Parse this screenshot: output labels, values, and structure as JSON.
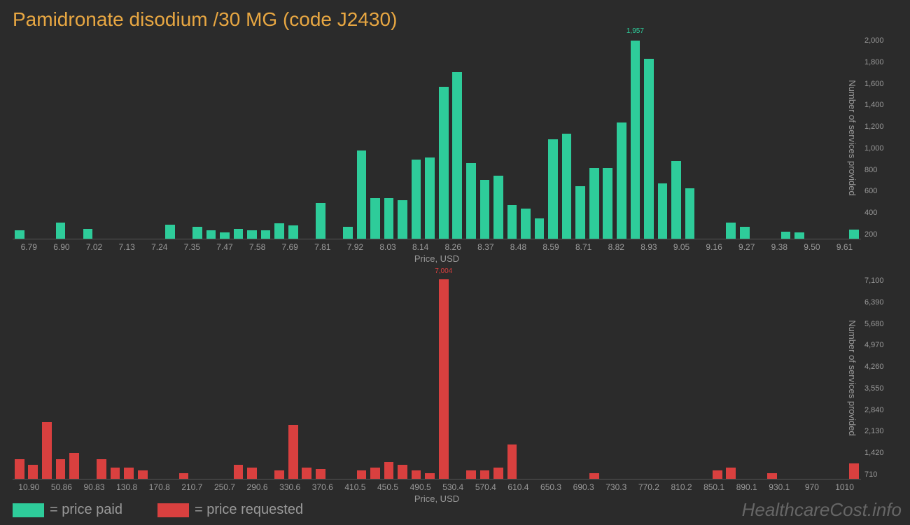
{
  "title": "Pamidronate disodium /30 MG (code J2430)",
  "colors": {
    "background": "#2b2b2b",
    "title": "#e8a742",
    "axis_text": "#999999",
    "paid": "#2ecc9a",
    "requested": "#d9403f",
    "watermark": "#666666"
  },
  "watermark": "HealthcareCost.info",
  "legend": [
    {
      "swatch": "#2ecc9a",
      "label": "= price paid"
    },
    {
      "swatch": "#d9403f",
      "label": "= price requested"
    }
  ],
  "chart_top": {
    "type": "bar",
    "bar_color": "#2ecc9a",
    "x_label": "Price, USD",
    "y_label": "Number of services provided",
    "y_label_side": "right",
    "ylim": [
      0,
      2000
    ],
    "y_ticks": [
      "2,000",
      "1,800",
      "1,600",
      "1,400",
      "1,200",
      "1,000",
      "800",
      "600",
      "400",
      "200"
    ],
    "x_ticks": [
      "6.79",
      "6.90",
      "7.02",
      "7.13",
      "7.24",
      "7.35",
      "7.47",
      "7.58",
      "7.69",
      "7.81",
      "7.92",
      "8.03",
      "8.14",
      "8.26",
      "8.37",
      "8.48",
      "8.59",
      "8.71",
      "8.82",
      "8.93",
      "9.05",
      "9.16",
      "9.27",
      "9.38",
      "9.50",
      "9.61"
    ],
    "peak": {
      "value_label": "1,957",
      "color": "#2ecc9a"
    },
    "values": [
      80,
      0,
      0,
      160,
      0,
      100,
      0,
      0,
      0,
      0,
      0,
      140,
      0,
      120,
      80,
      60,
      100,
      80,
      80,
      150,
      130,
      0,
      350,
      0,
      120,
      870,
      400,
      400,
      380,
      780,
      800,
      1500,
      1650,
      750,
      580,
      620,
      330,
      300,
      200,
      980,
      1040,
      520,
      700,
      700,
      1150,
      1957,
      1780,
      550,
      770,
      500,
      0,
      0,
      160,
      120,
      0,
      0,
      70,
      60,
      0,
      0,
      0,
      90
    ],
    "peak_index": 45
  },
  "chart_bottom": {
    "type": "bar",
    "bar_color": "#d9403f",
    "x_label": "Price, USD",
    "y_label": "Number of services provided",
    "y_label_side": "right",
    "ylim": [
      0,
      7100
    ],
    "y_ticks": [
      "7,100",
      "6,390",
      "5,680",
      "4,970",
      "4,260",
      "3,550",
      "2,840",
      "2,130",
      "1,420",
      "710"
    ],
    "x_ticks": [
      "10.90",
      "50.86",
      "90.83",
      "130.8",
      "170.8",
      "210.7",
      "250.7",
      "290.6",
      "330.6",
      "370.6",
      "410.5",
      "450.5",
      "490.5",
      "530.4",
      "570.4",
      "610.4",
      "650.3",
      "690.3",
      "730.3",
      "770.2",
      "810.2",
      "850.1",
      "890.1",
      "930.1",
      "970",
      "1010"
    ],
    "peak": {
      "value_label": "7,004",
      "color": "#d9403f"
    },
    "values": [
      700,
      500,
      2000,
      700,
      900,
      0,
      700,
      400,
      400,
      300,
      0,
      0,
      200,
      0,
      0,
      0,
      500,
      400,
      0,
      300,
      1900,
      400,
      350,
      0,
      0,
      300,
      400,
      600,
      500,
      300,
      200,
      7004,
      0,
      300,
      300,
      400,
      1200,
      0,
      0,
      0,
      0,
      0,
      200,
      0,
      0,
      0,
      0,
      0,
      0,
      0,
      0,
      300,
      400,
      0,
      0,
      200,
      0,
      0,
      0,
      0,
      0,
      550
    ],
    "peak_index": 31
  }
}
